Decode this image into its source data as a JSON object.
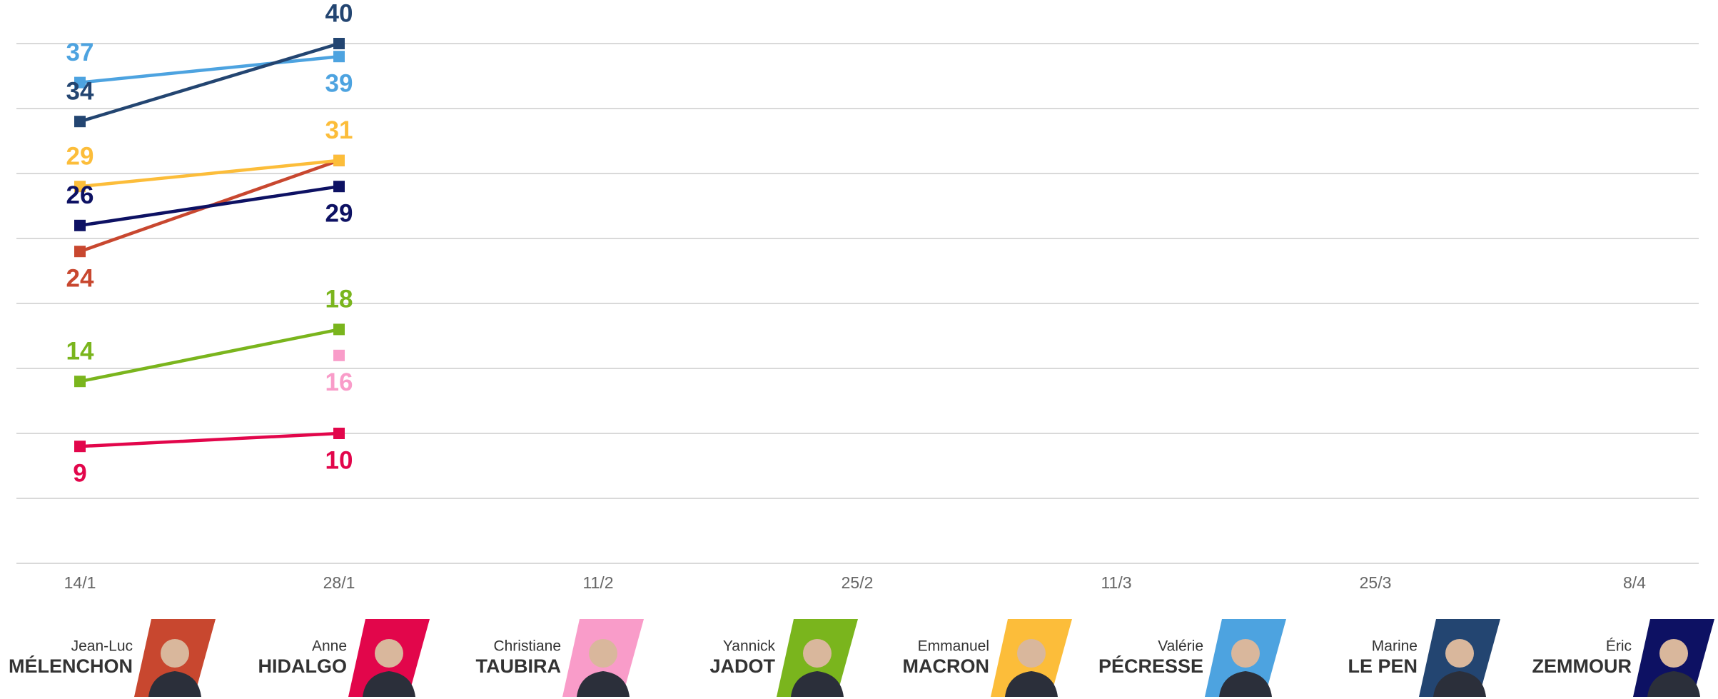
{
  "chart_data": {
    "type": "line",
    "categories": [
      "14/1",
      "28/1",
      "11/2",
      "25/2",
      "11/3",
      "25/3",
      "8/4"
    ],
    "ylim": [
      0,
      40
    ],
    "yticks": [
      0,
      5,
      10,
      15,
      20,
      25,
      30,
      35,
      40
    ],
    "grid": true,
    "series": [
      {
        "first_name": "Jean-Luc",
        "name": "MÉLENCHON",
        "color": "#c8472f",
        "values": [
          24,
          31,
          null,
          null,
          null,
          null,
          null
        ]
      },
      {
        "first_name": "Anne",
        "name": "HIDALGO",
        "color": "#e2064b",
        "values": [
          9,
          10,
          null,
          null,
          null,
          null,
          null
        ]
      },
      {
        "first_name": "Christiane",
        "name": "TAUBIRA",
        "color": "#f99cc9",
        "values": [
          null,
          16,
          null,
          null,
          null,
          null,
          null
        ]
      },
      {
        "first_name": "Yannick",
        "name": "JADOT",
        "color": "#7ab51d",
        "values": [
          14,
          18,
          null,
          null,
          null,
          null,
          null
        ]
      },
      {
        "first_name": "Emmanuel",
        "name": "MACRON",
        "color": "#fcbd3a",
        "values": [
          29,
          31,
          null,
          null,
          null,
          null,
          null
        ]
      },
      {
        "first_name": "Valérie",
        "name": "PÉCRESSE",
        "color": "#4da3e0",
        "values": [
          37,
          39,
          null,
          null,
          null,
          null,
          null
        ]
      },
      {
        "first_name": "Marine",
        "name": "LE PEN",
        "color": "#234571",
        "values": [
          34,
          40,
          null,
          null,
          null,
          null,
          null
        ]
      },
      {
        "first_name": "Éric",
        "name": "ZEMMOUR",
        "color": "#0d1163",
        "values": [
          26,
          29,
          null,
          null,
          null,
          null,
          null
        ]
      }
    ]
  }
}
